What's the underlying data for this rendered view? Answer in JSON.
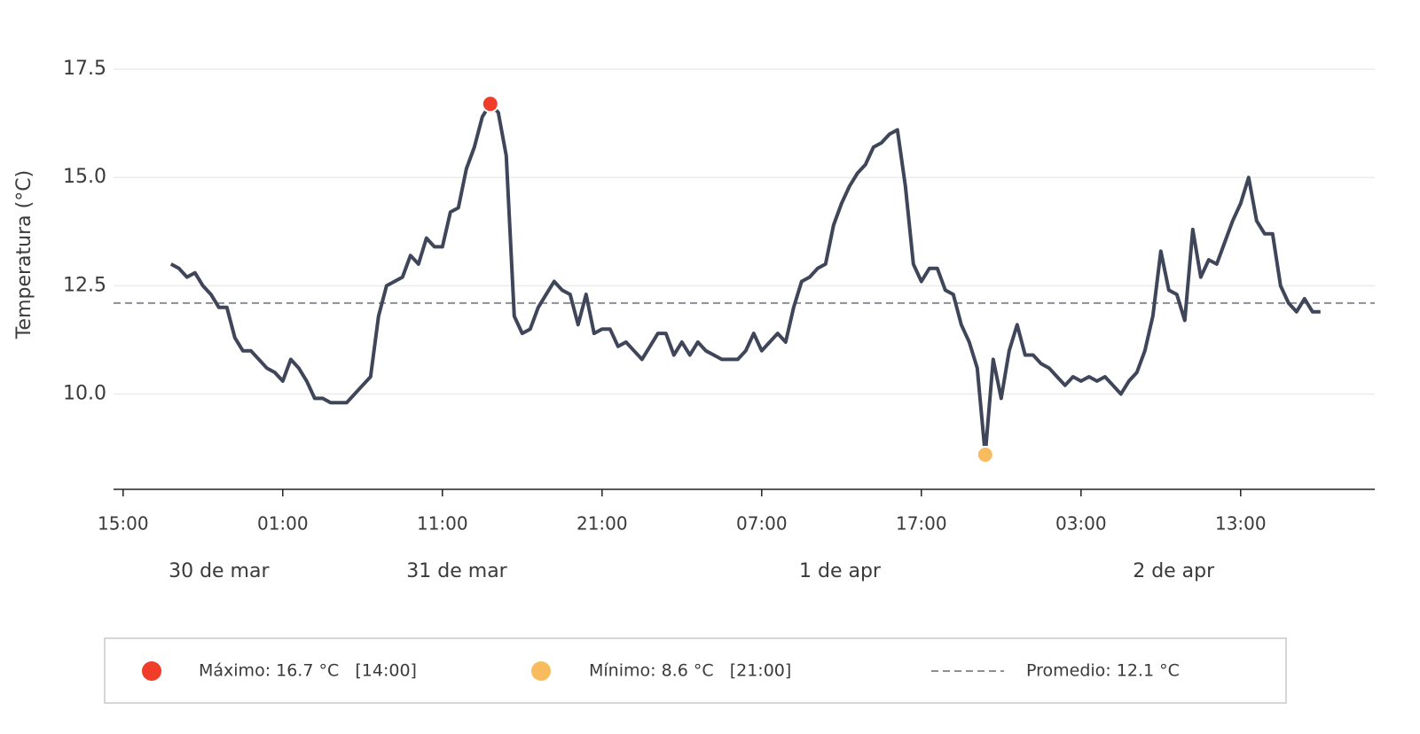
{
  "chart_data": {
    "type": "line",
    "y_label": "Temperatura (°C)",
    "xlim": [
      -0.6,
      78.4
    ],
    "ylim": [
      7.8,
      18.3
    ],
    "yticks": [
      {
        "value": 10,
        "label": "10.0"
      },
      12.5,
      {
        "value": 15,
        "label": "15.0"
      },
      17.5
    ],
    "xticks": [
      {
        "value": 0,
        "label": "15:00"
      },
      {
        "value": 10,
        "label": "01:00"
      },
      {
        "value": 20,
        "label": "11:00"
      },
      {
        "value": 30,
        "label": "21:00"
      },
      {
        "value": 40,
        "label": "07:00"
      },
      {
        "value": 50,
        "label": "17:00"
      },
      {
        "value": 60,
        "label": "03:00"
      },
      {
        "value": 70,
        "label": "13:00"
      }
    ],
    "date_labels": [
      {
        "value": 6,
        "label": "30 de mar"
      },
      {
        "value": 20.9,
        "label": "31 de mar"
      },
      {
        "value": 44.9,
        "label": "1 de apr"
      },
      {
        "value": 65.8,
        "label": "2 de apr"
      }
    ],
    "grid": true,
    "series": [
      {
        "color": "#404659",
        "x": [
          3,
          3.5,
          4,
          4.5,
          5,
          5.5,
          6,
          6.5,
          7,
          7.5,
          8,
          8.5,
          9,
          9.5,
          10,
          10.5,
          11,
          11.5,
          12,
          12.5,
          13,
          13.5,
          14,
          14.5,
          15,
          15.5,
          16,
          16.5,
          17,
          17.5,
          18,
          18.5,
          19,
          19.5,
          20,
          20.5,
          21,
          21.5,
          22,
          22.5,
          23,
          23.5,
          24,
          24.5,
          25,
          25.5,
          26,
          26.5,
          27,
          27.5,
          28,
          28.5,
          29,
          29.5,
          30,
          30.5,
          31,
          31.5,
          32,
          32.5,
          33,
          33.5,
          34,
          34.5,
          35,
          35.5,
          36,
          36.5,
          37,
          37.5,
          38,
          38.5,
          39,
          39.5,
          40,
          40.5,
          41,
          41.5,
          42,
          42.5,
          43,
          43.5,
          44,
          44.5,
          45,
          45.5,
          46,
          46.5,
          47,
          47.5,
          48,
          48.5,
          49,
          49.5,
          50,
          50.5,
          51,
          51.5,
          52,
          52.5,
          53,
          53.5,
          54,
          54.5,
          55,
          55.5,
          56,
          56.5,
          57,
          57.5,
          58,
          58.5,
          59,
          59.5,
          60,
          60.5,
          61,
          61.5,
          62,
          62.5,
          63,
          63.5,
          64,
          64.5,
          65,
          65.5,
          66,
          66.5,
          67,
          67.5,
          68,
          68.5,
          69,
          69.5,
          70,
          70.5,
          71,
          71.5,
          72,
          72.5,
          73,
          73.5,
          74,
          74.5,
          75
        ],
        "values": [
          13.0,
          12.9,
          12.7,
          12.8,
          12.5,
          12.3,
          12.0,
          12.0,
          11.3,
          11.0,
          11.0,
          10.8,
          10.6,
          10.5,
          10.3,
          10.8,
          10.6,
          10.3,
          9.9,
          9.9,
          9.8,
          9.8,
          9.8,
          10.0,
          10.2,
          10.4,
          11.8,
          12.5,
          12.6,
          12.7,
          13.2,
          13.0,
          13.6,
          13.4,
          13.4,
          14.2,
          14.3,
          15.2,
          15.7,
          16.4,
          16.7,
          16.5,
          15.5,
          11.8,
          11.4,
          11.5,
          12.0,
          12.3,
          12.6,
          12.4,
          12.3,
          11.6,
          12.3,
          11.4,
          11.5,
          11.5,
          11.1,
          11.2,
          11.0,
          10.8,
          11.1,
          11.4,
          11.4,
          10.9,
          11.2,
          10.9,
          11.2,
          11.0,
          10.9,
          10.8,
          10.8,
          10.8,
          11.0,
          11.4,
          11.0,
          11.2,
          11.4,
          11.2,
          12.0,
          12.6,
          12.7,
          12.9,
          13.0,
          13.9,
          14.4,
          14.8,
          15.1,
          15.3,
          15.7,
          15.8,
          16.0,
          16.1,
          14.8,
          13.0,
          12.6,
          12.9,
          12.9,
          12.4,
          12.3,
          11.6,
          11.2,
          10.6,
          8.6,
          10.8,
          9.9,
          11.0,
          11.6,
          10.9,
          10.9,
          10.7,
          10.6,
          10.4,
          10.2,
          10.4,
          10.3,
          10.4,
          10.3,
          10.4,
          10.2,
          10.0,
          10.3,
          10.5,
          11.0,
          11.8,
          13.3,
          12.4,
          12.3,
          11.7,
          13.8,
          12.7,
          13.1,
          13.0,
          13.5,
          14.0,
          14.4,
          15.0,
          14.0,
          13.7,
          13.7,
          12.5,
          12.1,
          11.9,
          12.2,
          11.9,
          11.9
        ]
      }
    ],
    "max_point": {
      "label": "Máximo: 16.7 °C   [14:00]",
      "x": 23,
      "y": 16.7,
      "color": "#f03c28"
    },
    "min_point": {
      "label": "Mínimo: 8.6 °C   [21:00]",
      "x": 54,
      "y": 8.6,
      "color": "#f8bc5e"
    },
    "mean_line": {
      "label": "Promedio: 12.1 °C",
      "y": 12.1,
      "color": "#8c8f96"
    }
  }
}
